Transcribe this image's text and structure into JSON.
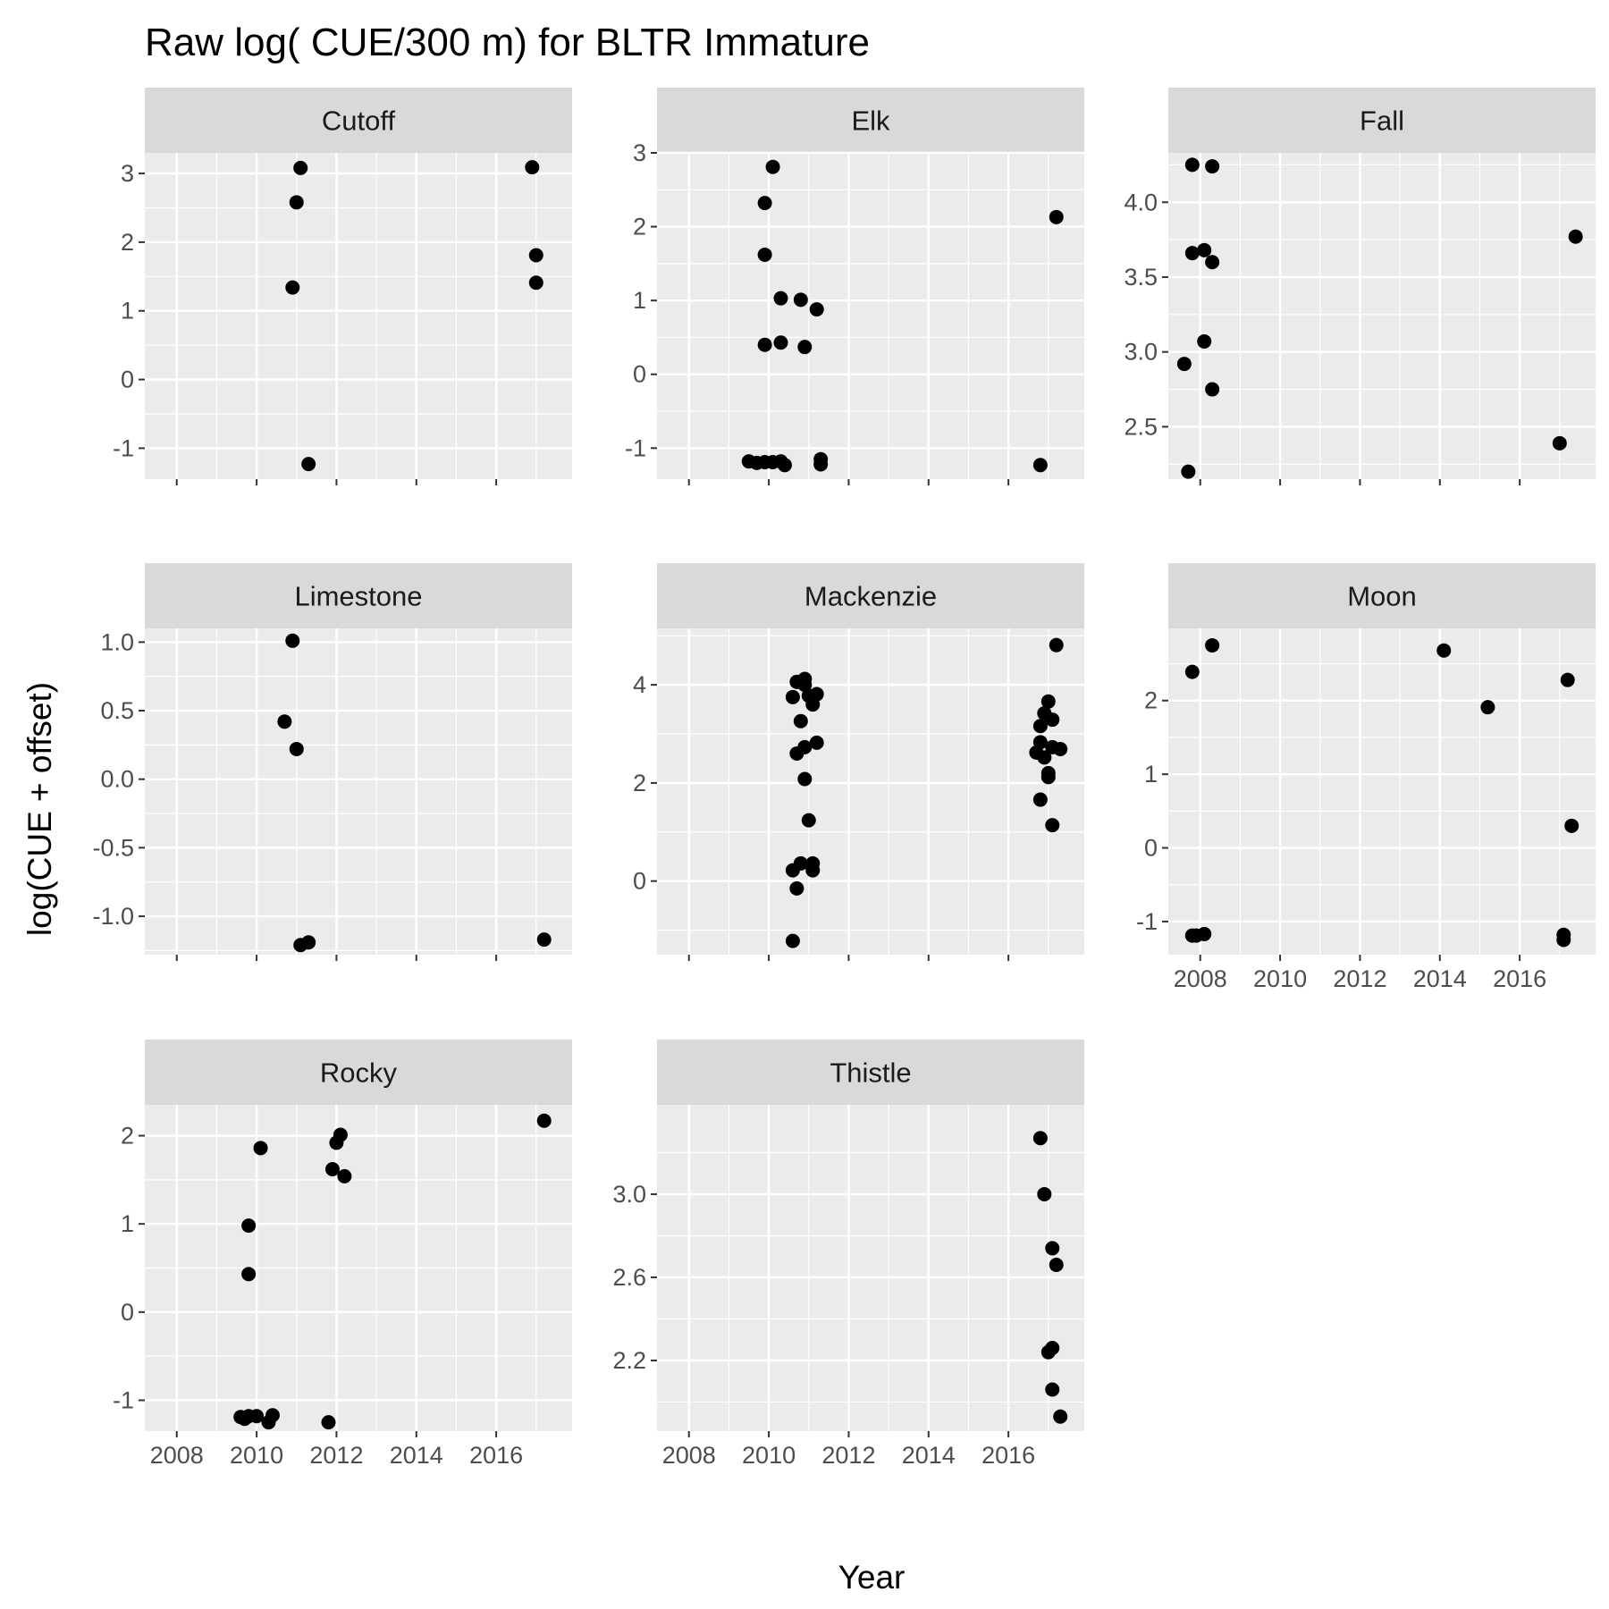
{
  "chart_data": {
    "type": "scatter",
    "title": "Raw log( CUE/300 m) for BLTR Immature",
    "xlabel": "Year",
    "ylabel": "log(CUE + offset)",
    "xlim": [
      2007.2,
      2017.9
    ],
    "xticks": [
      2008,
      2010,
      2012,
      2014,
      2016
    ],
    "colors": {
      "panel_background": "#ebebeb",
      "strip_background": "#d9d9d9",
      "grid": "#ffffff",
      "point": "#000000",
      "tick_text": "#4d4d4d"
    },
    "grid": true,
    "panels": [
      {
        "name": "Cutoff",
        "ylim": [
          -1.45,
          3.3
        ],
        "yticks": [
          -1,
          0,
          1,
          2,
          3
        ],
        "yticklabels": [
          "-1",
          "0",
          "1",
          "2",
          "3"
        ],
        "points": [
          {
            "x": 2010.9,
            "y": 1.34
          },
          {
            "x": 2011.0,
            "y": 2.58
          },
          {
            "x": 2011.1,
            "y": 3.08
          },
          {
            "x": 2011.3,
            "y": -1.23
          },
          {
            "x": 2016.9,
            "y": 3.09
          },
          {
            "x": 2017.0,
            "y": 1.81
          },
          {
            "x": 2017.0,
            "y": 1.41
          }
        ]
      },
      {
        "name": "Elk",
        "ylim": [
          -1.42,
          3.0
        ],
        "yticks": [
          -1,
          0,
          1,
          2,
          3
        ],
        "yticklabels": [
          "-1",
          "0",
          "1",
          "2",
          "3"
        ],
        "points": [
          {
            "x": 2009.5,
            "y": -1.18
          },
          {
            "x": 2009.7,
            "y": -1.2
          },
          {
            "x": 2009.9,
            "y": -1.19
          },
          {
            "x": 2009.9,
            "y": 2.32
          },
          {
            "x": 2009.9,
            "y": 1.62
          },
          {
            "x": 2009.9,
            "y": 0.4
          },
          {
            "x": 2010.1,
            "y": 2.81
          },
          {
            "x": 2010.1,
            "y": -1.19
          },
          {
            "x": 2010.3,
            "y": 1.03
          },
          {
            "x": 2010.3,
            "y": 0.43
          },
          {
            "x": 2010.3,
            "y": -1.18
          },
          {
            "x": 2010.4,
            "y": -1.23
          },
          {
            "x": 2010.8,
            "y": 1.01
          },
          {
            "x": 2010.9,
            "y": 0.37
          },
          {
            "x": 2011.2,
            "y": 0.88
          },
          {
            "x": 2011.3,
            "y": -1.15
          },
          {
            "x": 2011.3,
            "y": -1.22
          },
          {
            "x": 2016.8,
            "y": -1.23
          },
          {
            "x": 2017.2,
            "y": 2.13
          }
        ]
      },
      {
        "name": "Fall",
        "ylim": [
          2.15,
          4.33
        ],
        "yticks": [
          2.5,
          3.0,
          3.5,
          4.0
        ],
        "yticklabels": [
          "2.5",
          "3.0",
          "3.5",
          "4.0"
        ],
        "points": [
          {
            "x": 2007.6,
            "y": 2.92
          },
          {
            "x": 2007.7,
            "y": 2.2
          },
          {
            "x": 2007.8,
            "y": 4.25
          },
          {
            "x": 2007.8,
            "y": 3.66
          },
          {
            "x": 2008.1,
            "y": 3.68
          },
          {
            "x": 2008.1,
            "y": 3.07
          },
          {
            "x": 2008.3,
            "y": 4.24
          },
          {
            "x": 2008.3,
            "y": 3.6
          },
          {
            "x": 2008.3,
            "y": 2.75
          },
          {
            "x": 2017.0,
            "y": 2.39
          },
          {
            "x": 2017.4,
            "y": 3.77
          }
        ]
      },
      {
        "name": "Limestone",
        "ylim": [
          -1.28,
          1.1
        ],
        "yticks": [
          -1.0,
          -0.5,
          0.0,
          0.5,
          1.0
        ],
        "yticklabels": [
          "-1.0",
          "-0.5",
          "0.0",
          "0.5",
          "1.0"
        ],
        "points": [
          {
            "x": 2010.7,
            "y": 0.42
          },
          {
            "x": 2010.9,
            "y": 1.01
          },
          {
            "x": 2011.0,
            "y": 0.22
          },
          {
            "x": 2011.1,
            "y": -1.21
          },
          {
            "x": 2011.3,
            "y": -1.19
          },
          {
            "x": 2017.2,
            "y": -1.17
          }
        ]
      },
      {
        "name": "Mackenzie",
        "ylim": [
          -1.5,
          5.15
        ],
        "yticks": [
          0,
          2,
          4
        ],
        "yticklabels": [
          "0",
          "2",
          "4"
        ],
        "points": [
          {
            "x": 2010.6,
            "y": 3.75
          },
          {
            "x": 2010.7,
            "y": 4.06
          },
          {
            "x": 2010.7,
            "y": 2.6
          },
          {
            "x": 2010.6,
            "y": 0.22
          },
          {
            "x": 2010.7,
            "y": -0.15
          },
          {
            "x": 2010.6,
            "y": -1.22
          },
          {
            "x": 2010.8,
            "y": 3.26
          },
          {
            "x": 2010.8,
            "y": 0.36
          },
          {
            "x": 2010.9,
            "y": 4.12
          },
          {
            "x": 2010.9,
            "y": 4.0
          },
          {
            "x": 2010.9,
            "y": 2.73
          },
          {
            "x": 2010.9,
            "y": 2.08
          },
          {
            "x": 2011.0,
            "y": 3.78
          },
          {
            "x": 2011.0,
            "y": 1.24
          },
          {
            "x": 2011.1,
            "y": 3.6
          },
          {
            "x": 2011.1,
            "y": 0.36
          },
          {
            "x": 2011.1,
            "y": 0.22
          },
          {
            "x": 2011.2,
            "y": 3.81
          },
          {
            "x": 2011.2,
            "y": 2.82
          },
          {
            "x": 2016.7,
            "y": 2.62
          },
          {
            "x": 2016.8,
            "y": 3.16
          },
          {
            "x": 2016.8,
            "y": 2.83
          },
          {
            "x": 2016.8,
            "y": 1.66
          },
          {
            "x": 2016.9,
            "y": 3.42
          },
          {
            "x": 2016.9,
            "y": 2.52
          },
          {
            "x": 2017.0,
            "y": 3.66
          },
          {
            "x": 2017.0,
            "y": 2.2
          },
          {
            "x": 2017.0,
            "y": 2.12
          },
          {
            "x": 2017.1,
            "y": 3.29
          },
          {
            "x": 2017.1,
            "y": 2.73
          },
          {
            "x": 2017.1,
            "y": 1.14
          },
          {
            "x": 2017.3,
            "y": 2.69
          },
          {
            "x": 2017.2,
            "y": 4.81
          }
        ]
      },
      {
        "name": "Moon",
        "ylim": [
          -1.45,
          2.98
        ],
        "yticks": [
          -1,
          0,
          1,
          2
        ],
        "yticklabels": [
          "-1",
          "0",
          "1",
          "2"
        ],
        "points": [
          {
            "x": 2007.8,
            "y": 2.39
          },
          {
            "x": 2007.8,
            "y": -1.19
          },
          {
            "x": 2007.9,
            "y": -1.19
          },
          {
            "x": 2008.1,
            "y": -1.17
          },
          {
            "x": 2008.3,
            "y": 2.75
          },
          {
            "x": 2014.1,
            "y": 2.68
          },
          {
            "x": 2015.2,
            "y": 1.91
          },
          {
            "x": 2017.1,
            "y": -1.18
          },
          {
            "x": 2017.1,
            "y": -1.25
          },
          {
            "x": 2017.2,
            "y": 2.28
          },
          {
            "x": 2017.3,
            "y": 0.3
          }
        ]
      },
      {
        "name": "Rocky",
        "ylim": [
          -1.35,
          2.35
        ],
        "yticks": [
          -1,
          0,
          1,
          2
        ],
        "yticklabels": [
          "-1",
          "0",
          "1",
          "2"
        ],
        "points": [
          {
            "x": 2009.6,
            "y": -1.19
          },
          {
            "x": 2009.7,
            "y": -1.21
          },
          {
            "x": 2009.8,
            "y": -1.18
          },
          {
            "x": 2009.8,
            "y": 0.98
          },
          {
            "x": 2009.8,
            "y": 0.43
          },
          {
            "x": 2010.0,
            "y": -1.18
          },
          {
            "x": 2010.1,
            "y": 1.86
          },
          {
            "x": 2010.3,
            "y": -1.25
          },
          {
            "x": 2010.4,
            "y": -1.17
          },
          {
            "x": 2011.8,
            "y": -1.25
          },
          {
            "x": 2011.9,
            "y": 1.62
          },
          {
            "x": 2012.0,
            "y": 1.92
          },
          {
            "x": 2012.1,
            "y": 2.01
          },
          {
            "x": 2012.2,
            "y": 1.54
          },
          {
            "x": 2017.2,
            "y": 2.17
          }
        ]
      },
      {
        "name": "Thistle",
        "ylim": [
          1.86,
          3.43
        ],
        "yticks": [
          2.2,
          2.6,
          3.0
        ],
        "yticklabels": [
          "2.2",
          "2.6",
          "3.0"
        ],
        "points": [
          {
            "x": 2016.8,
            "y": 3.27
          },
          {
            "x": 2016.9,
            "y": 3.0
          },
          {
            "x": 2017.0,
            "y": 2.24
          },
          {
            "x": 2017.1,
            "y": 2.74
          },
          {
            "x": 2017.1,
            "y": 2.26
          },
          {
            "x": 2017.1,
            "y": 2.06
          },
          {
            "x": 2017.2,
            "y": 2.66
          },
          {
            "x": 2017.3,
            "y": 1.93
          }
        ]
      }
    ]
  }
}
